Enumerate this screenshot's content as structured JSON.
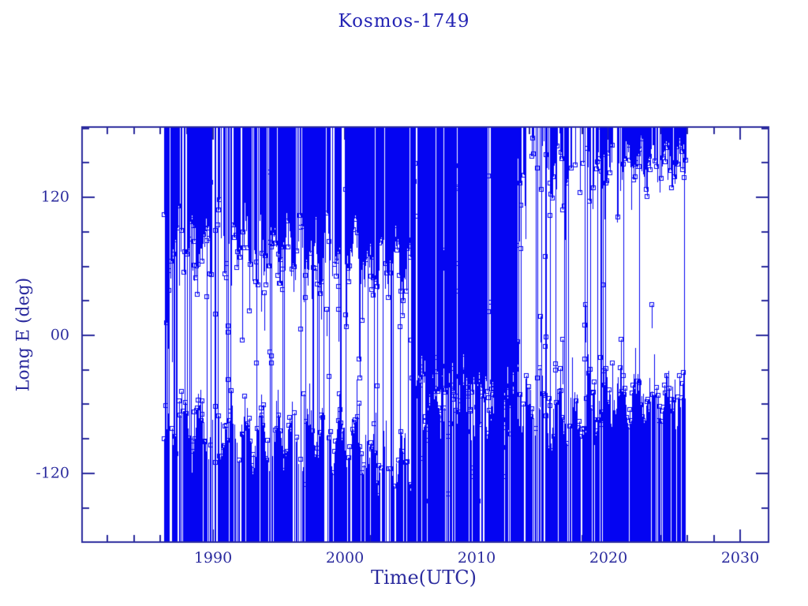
{
  "chart_data": {
    "type": "scatter",
    "title": "Kosmos-1749",
    "xlabel": "Time(UTC)",
    "ylabel": "Long E (deg)",
    "xlim": [
      1980.0,
      2032.2
    ],
    "ylim": [
      -181,
      182
    ],
    "x_major_ticks": [
      1990,
      2000,
      2010,
      2020,
      2030
    ],
    "x_tick_labels": [
      "1990",
      "2000",
      "2010",
      "2020",
      "2030"
    ],
    "x_minor_step_years": 2,
    "y_major_ticks": [
      -120,
      0,
      120
    ],
    "y_tick_labels": [
      "-120",
      "00",
      "120"
    ],
    "y_minor_step_deg": 30,
    "grid": "off",
    "legend": "none",
    "marker": "open-square",
    "marker_size_px": 5,
    "colors": {
      "data": "#0404f2",
      "axis": "#2b2b9e",
      "title": "#2424b4",
      "background": "#ffffff"
    },
    "data_time_range": [
      1986.25,
      2025.9
    ],
    "description": "Sub-satellite longitude of Kosmos-1749 vs time; longitude wraps at +/-180 deg producing dense vertical lines. Dense band near +75..+183 deg and -75..-183 deg before 2005; near-solid coverage 2005-2013; sparse libration 2013-2019.6; tight bands +150..+183 and -55..-183 after 2019.6, ending ~2026.",
    "seed": 11,
    "segments": [
      {
        "t0": 1986.25,
        "t1": 1987.2,
        "wrap": 0.22,
        "mid": 0.1,
        "top": {
          "core": 80,
          "tail": -140,
          "p": 0.8,
          "tp": 0.45,
          "amp": 20
        },
        "bot": {
          "core": -85,
          "tail": -25,
          "p": 0.55,
          "tp": 0.3,
          "amp": 20
        }
      },
      {
        "t0": 1987.2,
        "t1": 1992.5,
        "wrap": 0.13,
        "mid": 0.035,
        "top": {
          "core": 85,
          "tail": -30,
          "p": 0.82,
          "tp": 0.3,
          "amp": 20
        },
        "bot": {
          "core": -85,
          "tail": -35,
          "p": 0.8,
          "tp": 0.3,
          "amp": 20
        }
      },
      {
        "t0": 1992.5,
        "t1": 2001.3,
        "wrap": 0.16,
        "mid": 0.04,
        "top": {
          "core": 75,
          "tail": -35,
          "p": 0.9,
          "tp": 0.32,
          "amp": 20
        },
        "bot": {
          "core": -90,
          "tail": -40,
          "p": 0.86,
          "tp": 0.3,
          "amp": 20
        }
      },
      {
        "t0": 2001.3,
        "t1": 2005.0,
        "wrap": 0.1,
        "mid": 0.02,
        "top": {
          "core": 65,
          "tail": 15,
          "p": 0.88,
          "tp": 0.3,
          "amp": 18
        },
        "bot": {
          "core": -110,
          "tail": -55,
          "p": 0.82,
          "tp": 0.4,
          "amp": 16
        }
      },
      {
        "t0": 2005.0,
        "t1": 2013.0,
        "wrap": 0.5,
        "mid": 0.05,
        "top": {
          "core": -40,
          "tail": -95,
          "p": 0.96,
          "tp": 0.3,
          "amp": 10
        },
        "bot": {
          "core": -65,
          "tail": -15,
          "p": 0.88,
          "tp": 0.3,
          "amp": 16
        }
      },
      {
        "t0": 2013.0,
        "t1": 2019.6,
        "wrap": 0.17,
        "mid": 0.09,
        "top": {
          "core": 148,
          "tail": 30,
          "p": 0.5,
          "tp": 0.45,
          "amp": 22
        },
        "bot": {
          "core": -70,
          "tail": -20,
          "p": 0.75,
          "tp": 0.35,
          "amp": 20
        }
      },
      {
        "t0": 2019.6,
        "t1": 2025.9,
        "wrap": 0.035,
        "mid": 0.015,
        "top": {
          "core": 152,
          "tail": 100,
          "p": 0.94,
          "tp": 0.3,
          "amp": 14
        },
        "bot": {
          "core": -55,
          "tail": -8,
          "p": 0.95,
          "tp": 0.2,
          "amp": 12
        }
      }
    ]
  }
}
